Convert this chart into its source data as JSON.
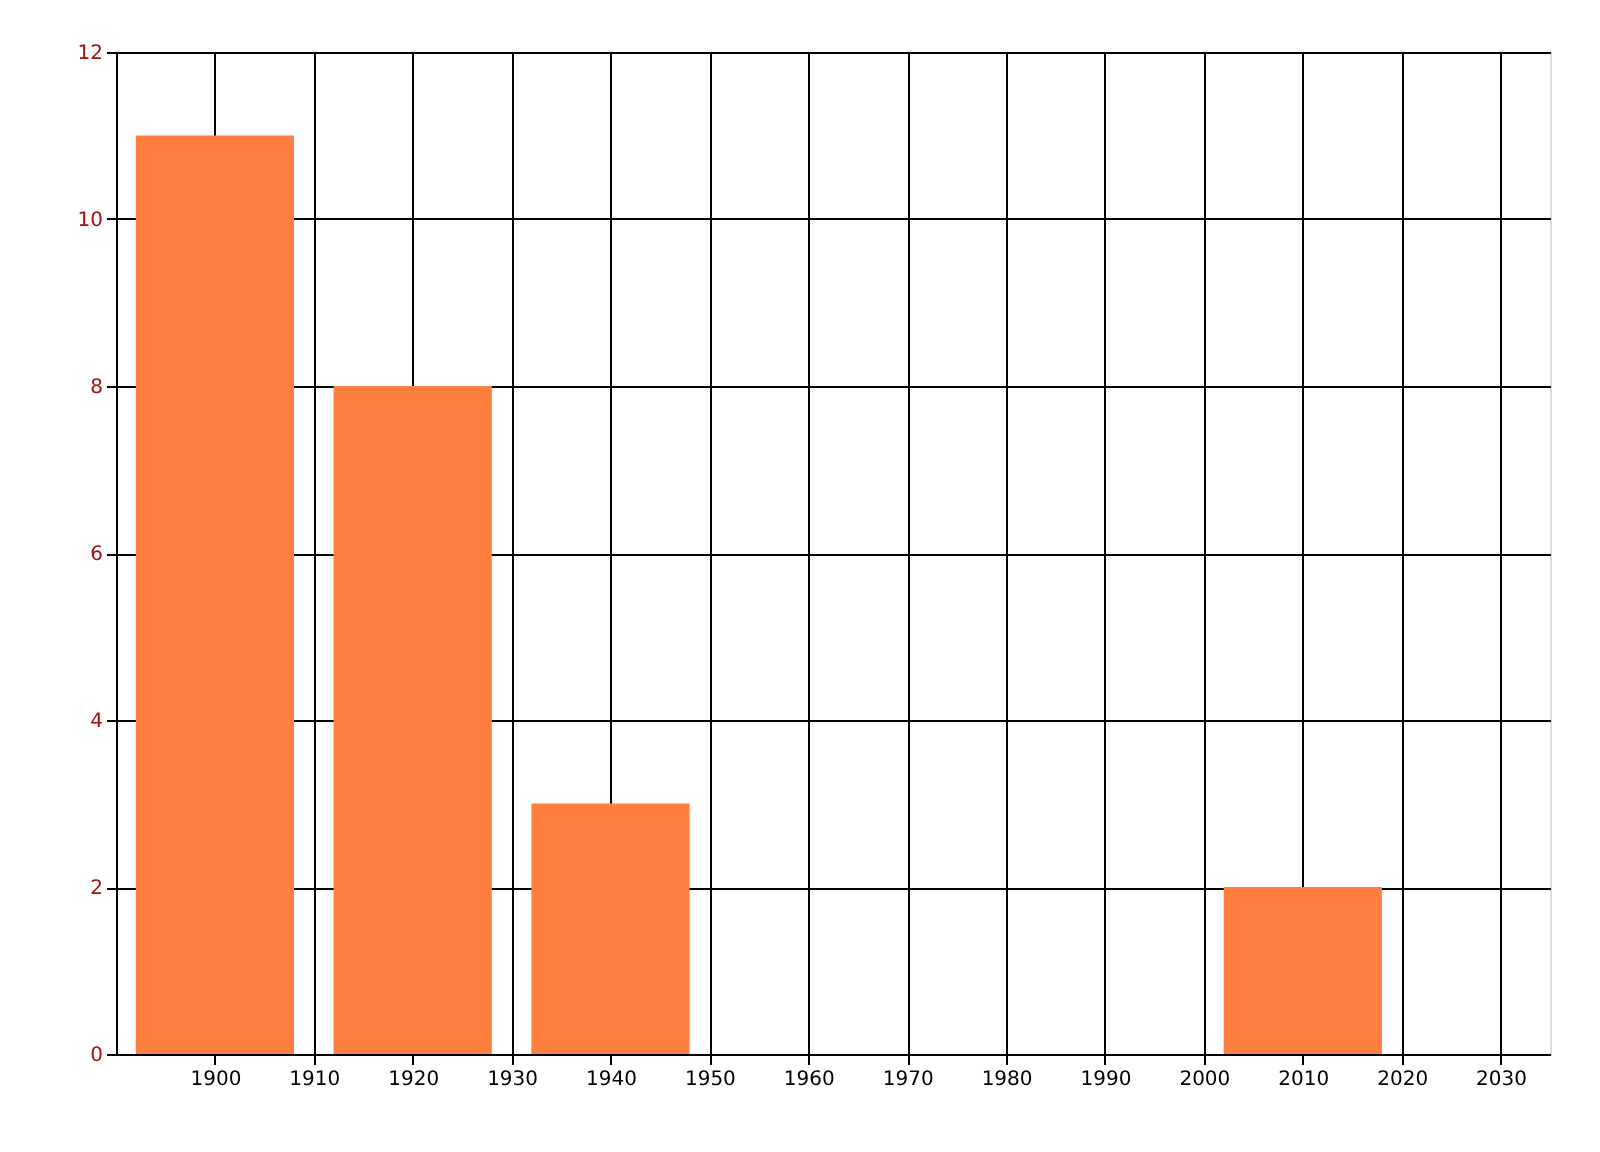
{
  "chart_data": {
    "type": "bar",
    "x": [
      1900,
      1920,
      1940,
      2010
    ],
    "values": [
      11,
      8,
      3,
      2
    ],
    "color": "#ff7f41",
    "xlim": [
      1890,
      2035
    ],
    "xticks": [
      1900,
      1910,
      1920,
      1930,
      1940,
      1950,
      1960,
      1970,
      1980,
      1990,
      2000,
      2010,
      2020,
      2030
    ],
    "ylim": [
      0,
      12
    ],
    "yticks": [
      0,
      2,
      4,
      6,
      8,
      10,
      12
    ],
    "grid": true
  }
}
